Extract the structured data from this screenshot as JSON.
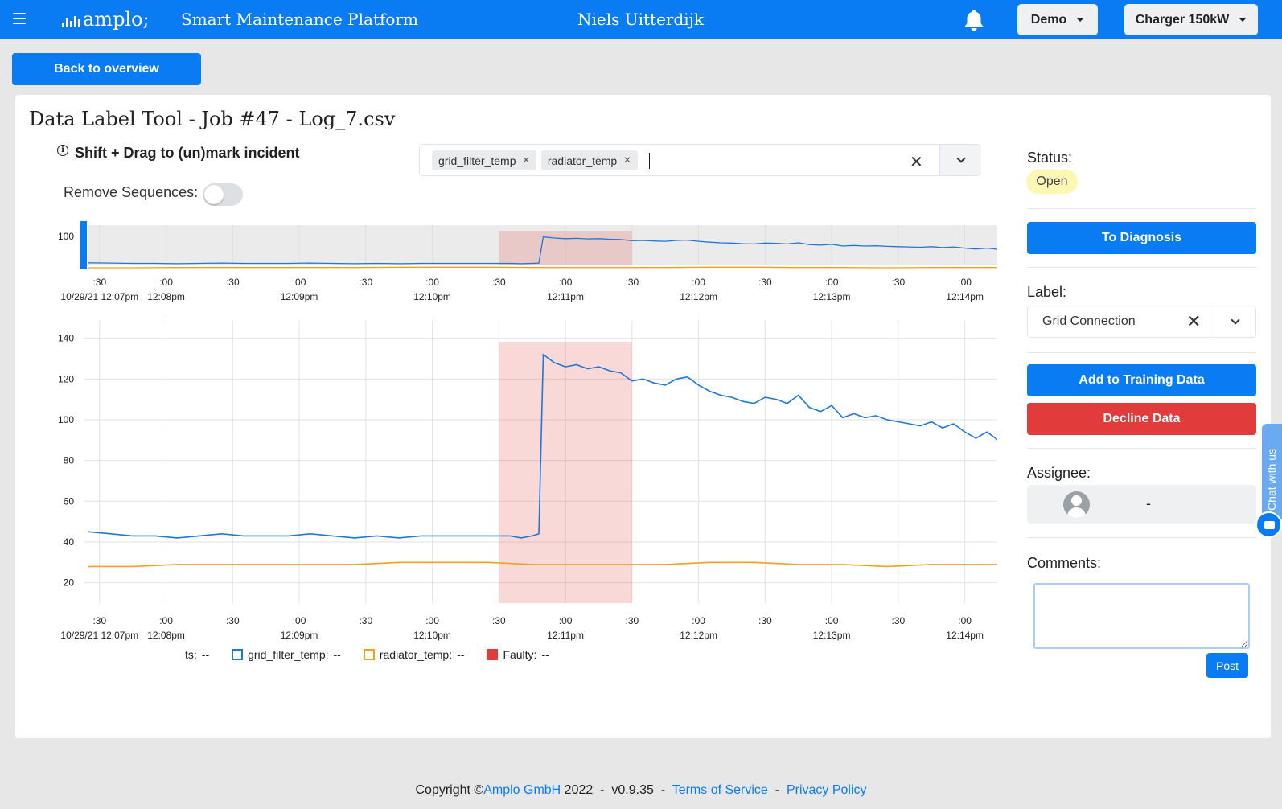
{
  "header": {
    "app_title": "Smart Maintenance Platform",
    "logo_text": "amplo;",
    "user_name": "Niels Uitterdijk",
    "demo_label": "Demo",
    "charger_label": "Charger 150kW"
  },
  "back_button": "Back to overview",
  "page_title": "Data Label Tool - Job #47 - Log_7.csv",
  "hint_text": "Shift + Drag to (un)mark incident",
  "remove_sequences_label": "Remove Sequences:",
  "signal_select": {
    "chips": [
      "grid_filter_temp",
      "radiator_temp"
    ]
  },
  "right_panel": {
    "status_label": "Status:",
    "status_value": "Open",
    "to_diagnosis": "To Diagnosis",
    "label_label": "Label:",
    "label_value": "Grid Connection",
    "add_training": "Add to Training Data",
    "decline": "Decline Data",
    "assignee_label": "Assignee:",
    "assignee_value": "-",
    "comments_label": "Comments:",
    "post": "Post"
  },
  "chat_label": "Chat with us",
  "legend": {
    "ts_label": "ts:",
    "ts_value": "--",
    "grid_label": "grid_filter_temp:",
    "grid_value": "--",
    "radiator_label": "radiator_temp:",
    "radiator_value": "--",
    "faulty_label": "Faulty:",
    "faulty_value": "--"
  },
  "footer": {
    "copyright": "Copyright ©",
    "company": "Amplo GmbH",
    "year_version": " 2022  -  v0.9.35  -  ",
    "terms": "Terms of Service",
    "sep": "  -  ",
    "privacy": "Privacy Policy"
  },
  "colors": {
    "primary": "#0a7cf3",
    "danger": "#e23b3b",
    "series_grid": "#1f77d8",
    "series_radiator": "#f5a01a",
    "faulty": "#e23b3b"
  },
  "chart_data": {
    "type": "line",
    "ylim": [
      10,
      143
    ],
    "yticks": [
      20,
      40,
      60,
      80,
      100,
      120,
      140
    ],
    "xlim": [
      0,
      410
    ],
    "x_unit": "seconds after 12:07:25pm, 10/29/21",
    "x_ticks": [
      {
        "t": 5,
        "top": ":30",
        "bottom": "10/29/21 12:07pm"
      },
      {
        "t": 35,
        "top": ":00",
        "bottom": "12:08pm"
      },
      {
        "t": 65,
        "top": ":30",
        "bottom": ""
      },
      {
        "t": 95,
        "top": ":00",
        "bottom": "12:09pm"
      },
      {
        "t": 125,
        "top": ":30",
        "bottom": ""
      },
      {
        "t": 155,
        "top": ":00",
        "bottom": "12:10pm"
      },
      {
        "t": 185,
        "top": ":30",
        "bottom": ""
      },
      {
        "t": 215,
        "top": ":00",
        "bottom": "12:11pm"
      },
      {
        "t": 245,
        "top": ":30",
        "bottom": ""
      },
      {
        "t": 275,
        "top": ":00",
        "bottom": "12:12pm"
      },
      {
        "t": 305,
        "top": ":30",
        "bottom": ""
      },
      {
        "t": 335,
        "top": ":00",
        "bottom": "12:13pm"
      },
      {
        "t": 365,
        "top": ":30",
        "bottom": ""
      },
      {
        "t": 395,
        "top": ":00",
        "bottom": "12:14pm"
      }
    ],
    "faulty_region": {
      "start": 185,
      "end": 245
    },
    "series": [
      {
        "name": "grid_filter_temp",
        "x": [
          0,
          10,
          20,
          30,
          40,
          50,
          60,
          70,
          80,
          90,
          100,
          110,
          120,
          130,
          140,
          150,
          160,
          170,
          180,
          190,
          195,
          200,
          203,
          205,
          210,
          215,
          220,
          225,
          230,
          235,
          240,
          245,
          250,
          255,
          260,
          265,
          270,
          275,
          280,
          285,
          290,
          295,
          300,
          305,
          310,
          315,
          320,
          325,
          330,
          335,
          340,
          345,
          350,
          355,
          360,
          365,
          370,
          375,
          380,
          385,
          390,
          395,
          400,
          405,
          410
        ],
        "y": [
          45,
          44,
          43,
          43,
          42,
          43,
          44,
          43,
          43,
          43,
          44,
          43,
          42,
          43,
          42,
          43,
          43,
          43,
          43,
          43,
          42,
          43,
          44,
          132,
          128,
          126,
          127,
          125,
          126,
          124,
          123,
          119,
          120,
          118,
          117,
          120,
          121,
          117,
          114,
          112,
          111,
          109,
          108,
          111,
          110,
          108,
          112,
          106,
          104,
          107,
          101,
          103,
          101,
          102,
          100,
          99,
          98,
          97,
          99,
          96,
          98,
          94,
          91,
          94,
          90
        ]
      },
      {
        "name": "radiator_temp",
        "x": [
          0,
          20,
          40,
          60,
          80,
          100,
          120,
          140,
          160,
          180,
          200,
          220,
          240,
          260,
          280,
          300,
          320,
          340,
          360,
          380,
          400,
          410
        ],
        "y": [
          28,
          28,
          29,
          29,
          29,
          29,
          29,
          30,
          30,
          30,
          29,
          29,
          29,
          29,
          30,
          30,
          29,
          29,
          28,
          29,
          29,
          29
        ]
      }
    ],
    "overview": {
      "ylabel_tick": "100"
    }
  }
}
